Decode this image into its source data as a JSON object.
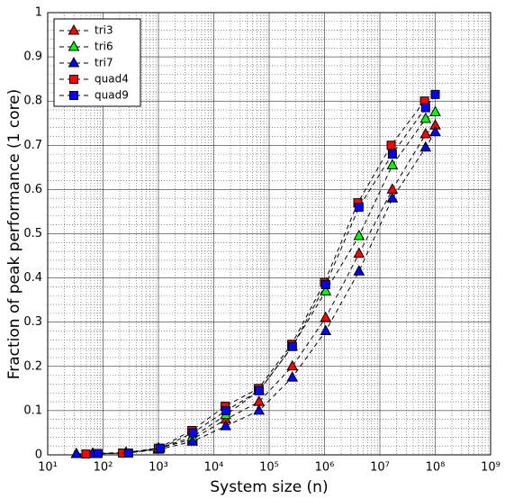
{
  "chart_data": {
    "type": "line",
    "xlabel": "System size (n)",
    "ylabel": "Fraction of peak performance (1 core)",
    "xscale": "log",
    "xlim": [
      10,
      1000000000
    ],
    "xticks": [
      {
        "value": 10,
        "label": "10¹"
      },
      {
        "value": 100,
        "label": "10²"
      },
      {
        "value": 1000,
        "label": "10³"
      },
      {
        "value": 10000,
        "label": "10⁴"
      },
      {
        "value": 100000,
        "label": "10⁵"
      },
      {
        "value": 1000000,
        "label": "10⁶"
      },
      {
        "value": 10000000,
        "label": "10⁷"
      },
      {
        "value": 100000000,
        "label": "10⁸"
      },
      {
        "value": 1000000000,
        "label": "10⁹"
      }
    ],
    "ylim": [
      0,
      1
    ],
    "yticks": [
      0,
      0.1,
      0.2,
      0.3,
      0.4,
      0.5,
      0.6,
      0.7,
      0.8,
      0.9,
      1
    ],
    "grid": true,
    "legend": "upper left",
    "series": [
      {
        "name": "tri3",
        "color": "#ff0000",
        "marker": "triangle",
        "x": [
          33,
          65,
          260,
          1000,
          4100,
          16400,
          65500,
          262000,
          1050000,
          4200000,
          16800000,
          67000000,
          100000000
        ],
        "values": [
          0.002,
          0.003,
          0.005,
          0.015,
          0.035,
          0.08,
          0.12,
          0.2,
          0.31,
          0.455,
          0.6,
          0.725,
          0.745
        ]
      },
      {
        "name": "tri6",
        "color": "#00ff00",
        "marker": "triangle",
        "x": [
          33,
          65,
          260,
          1000,
          4100,
          16400,
          65500,
          262000,
          1050000,
          4200000,
          16800000,
          67000000,
          100000000
        ],
        "values": [
          0.002,
          0.003,
          0.005,
          0.015,
          0.04,
          0.09,
          0.145,
          0.245,
          0.37,
          0.495,
          0.655,
          0.76,
          0.775
        ]
      },
      {
        "name": "tri7",
        "color": "#0000ff",
        "marker": "triangle",
        "x": [
          33,
          65,
          260,
          1000,
          4100,
          16400,
          65500,
          262000,
          1050000,
          4200000,
          16800000,
          67000000,
          100000000
        ],
        "values": [
          0.002,
          0.002,
          0.004,
          0.012,
          0.03,
          0.065,
          0.1,
          0.175,
          0.28,
          0.415,
          0.58,
          0.695,
          0.73
        ]
      },
      {
        "name": "quad4",
        "color": "#ff0000",
        "marker": "square",
        "x": [
          49,
          225,
          1000,
          4000,
          16000,
          64000,
          256000,
          1000000,
          4000000,
          16000000,
          64000000
        ],
        "values": [
          0.002,
          0.004,
          0.015,
          0.055,
          0.11,
          0.15,
          0.25,
          0.39,
          0.57,
          0.7,
          0.8
        ]
      },
      {
        "name": "quad9",
        "color": "#0000ff",
        "marker": "square",
        "x": [
          81,
          289,
          1089,
          4225,
          16641,
          66049,
          263169,
          1050625,
          4198401,
          16785409,
          67125249,
          100000000
        ],
        "values": [
          0.003,
          0.004,
          0.015,
          0.05,
          0.1,
          0.145,
          0.245,
          0.385,
          0.56,
          0.68,
          0.785,
          0.815
        ]
      }
    ]
  }
}
